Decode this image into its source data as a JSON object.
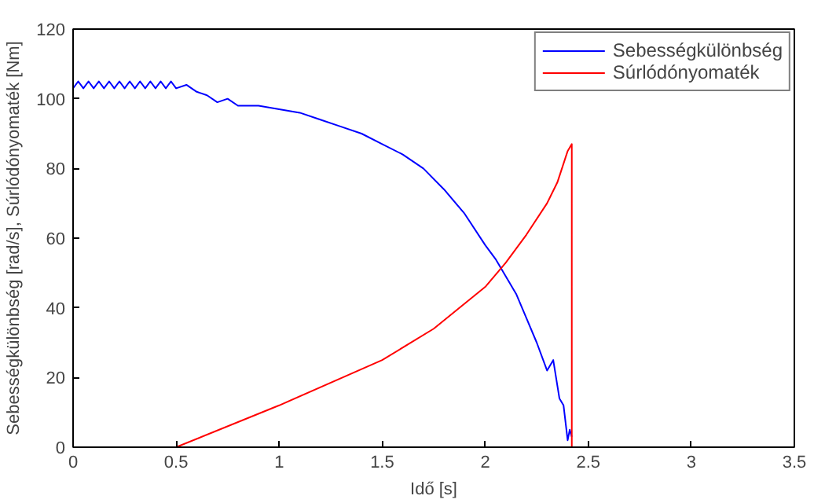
{
  "chart_data": {
    "type": "line",
    "xlabel": "Idő [s]",
    "ylabel": "Sebességkülönbség [rad/s], Súrlódónyomaték [Nm]",
    "xlim": [
      0,
      3.5
    ],
    "ylim": [
      0,
      120
    ],
    "xticks": [
      0,
      0.5,
      1,
      1.5,
      2,
      2.5,
      3,
      3.5
    ],
    "yticks": [
      0,
      20,
      40,
      60,
      80,
      100,
      120
    ],
    "grid": false,
    "legend": "top right",
    "marker": "none",
    "line_style": "solid",
    "series": [
      {
        "name": "Sebességkülönbség",
        "color": "#0000ff",
        "x": [
          0,
          0.025,
          0.05,
          0.075,
          0.1,
          0.125,
          0.15,
          0.175,
          0.2,
          0.225,
          0.25,
          0.275,
          0.3,
          0.325,
          0.35,
          0.375,
          0.4,
          0.425,
          0.45,
          0.475,
          0.5,
          0.55,
          0.6,
          0.65,
          0.7,
          0.75,
          0.8,
          0.9,
          1.0,
          1.1,
          1.2,
          1.3,
          1.4,
          1.5,
          1.6,
          1.7,
          1.8,
          1.9,
          2.0,
          2.05,
          2.1,
          2.15,
          2.2,
          2.25,
          2.3,
          2.33,
          2.36,
          2.38,
          2.4,
          2.41,
          2.42
        ],
        "values": [
          103,
          105,
          103,
          105,
          103,
          105,
          103,
          105,
          103,
          105,
          103,
          105,
          103,
          105,
          103,
          105,
          103,
          105,
          103,
          105,
          103,
          104,
          102,
          101,
          99,
          100,
          98,
          98,
          97,
          96,
          94,
          92,
          90,
          87,
          84,
          80,
          74,
          67,
          58,
          54,
          49,
          44,
          37,
          30,
          22,
          25,
          14,
          12,
          2,
          5,
          3
        ]
      },
      {
        "name": "Súrlódónyomaték",
        "color": "#ff0000",
        "x": [
          0,
          0.5,
          1.0,
          1.5,
          1.75,
          2.0,
          2.1,
          2.2,
          2.3,
          2.35,
          2.4,
          2.42,
          2.42,
          3.5
        ],
        "values": [
          0,
          0,
          12,
          25,
          34,
          46,
          53,
          61,
          70,
          76,
          85,
          87,
          0,
          0
        ]
      }
    ]
  }
}
